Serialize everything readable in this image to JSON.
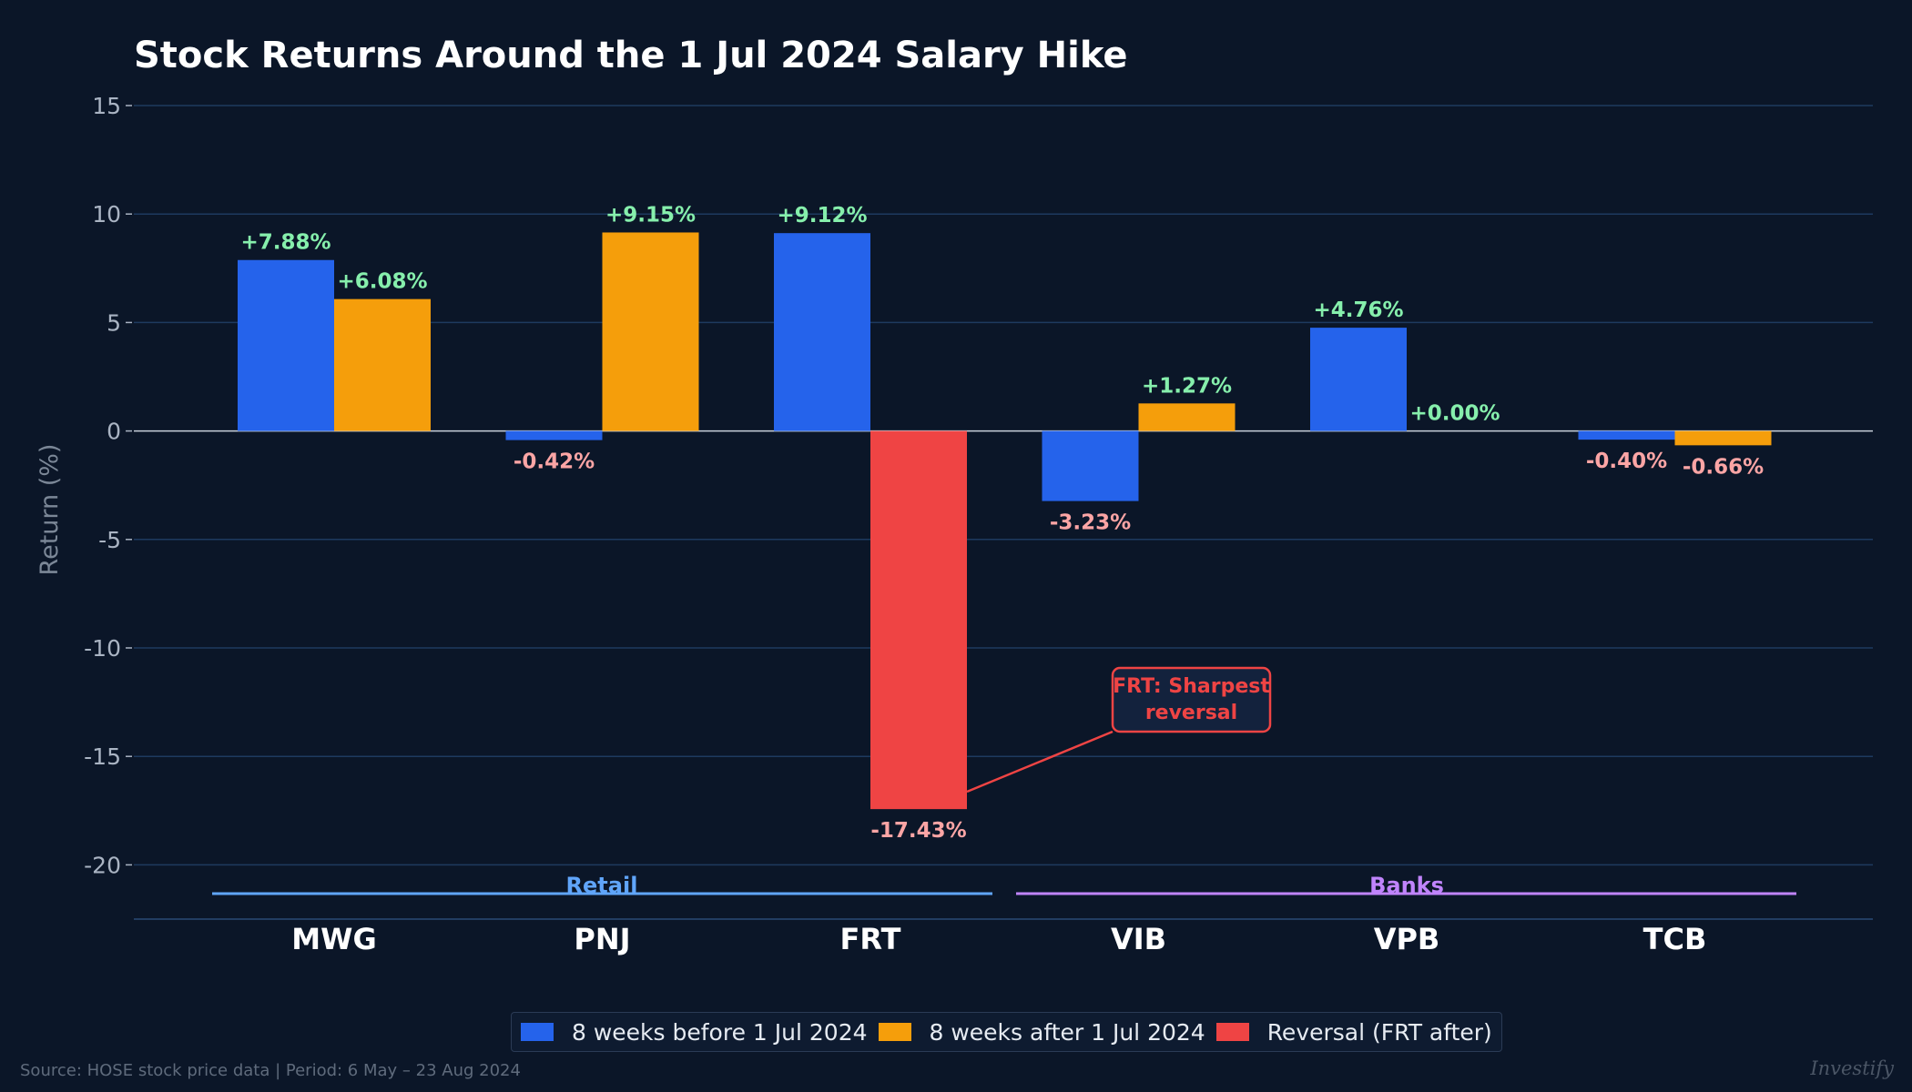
{
  "chart_data": {
    "type": "bar",
    "title": "Stock Returns Around the 1 Jul 2024 Salary Hike",
    "ylabel": "Return (%)",
    "xlabel": "",
    "ylim": [
      -22.5,
      15
    ],
    "yticks": [
      15,
      10,
      5,
      0,
      -5,
      -10,
      -15,
      -20
    ],
    "ytick_labels": [
      "15",
      "10",
      "5",
      "0",
      "-5",
      "-10",
      "-15",
      "-20"
    ],
    "grid": true,
    "categories": [
      "MWG",
      "PNJ",
      "FRT",
      "VIB",
      "VPB",
      "TCB"
    ],
    "series": [
      {
        "name": "8 weeks before 1 Jul 2024",
        "values": [
          7.88,
          -0.42,
          9.12,
          -3.23,
          4.76,
          -0.4
        ],
        "labels": [
          "+7.88%",
          "-0.42%",
          "+9.12%",
          "-3.23%",
          "+4.76%",
          "-0.40%"
        ]
      },
      {
        "name": "8 weeks after 1 Jul 2024",
        "values": [
          6.08,
          9.15,
          -17.43,
          1.27,
          0.0,
          -0.66
        ],
        "labels": [
          "+6.08%",
          "+9.15%",
          "-17.43%",
          "+1.27%",
          "+0.00%",
          "-0.66%"
        ]
      }
    ],
    "highlight": {
      "name": "Reversal (FRT after)",
      "category": "FRT",
      "series": 1
    },
    "groups": [
      {
        "label": "Retail",
        "categories": [
          "MWG",
          "PNJ",
          "FRT"
        ]
      },
      {
        "label": "Banks",
        "categories": [
          "VIB",
          "VPB",
          "TCB"
        ]
      }
    ],
    "annotation": {
      "text_lines": [
        "FRT: Sharpest",
        "reversal"
      ],
      "target_category": "FRT"
    },
    "legend_position": "bottom-center",
    "colors": {
      "before": "#2563eb",
      "after": "#f59e0b",
      "reversal": "#ef4444",
      "positive_label": "#86efac",
      "negative_label": "#fca5a5",
      "retail": "#60a5fa",
      "banks": "#c084fc",
      "grid": "#1e3a5f",
      "background": "#0b1628"
    }
  },
  "legend": {
    "items": [
      {
        "label": "8 weeks before 1 Jul 2024",
        "color": "#2563eb"
      },
      {
        "label": "8 weeks after 1 Jul 2024",
        "color": "#f59e0b"
      },
      {
        "label": "Reversal (FRT after)",
        "color": "#ef4444"
      }
    ]
  },
  "footer": {
    "source": "Source: HOSE stock price data  |  Period: 6 May – 23 Aug 2024",
    "brand": "Investify"
  }
}
